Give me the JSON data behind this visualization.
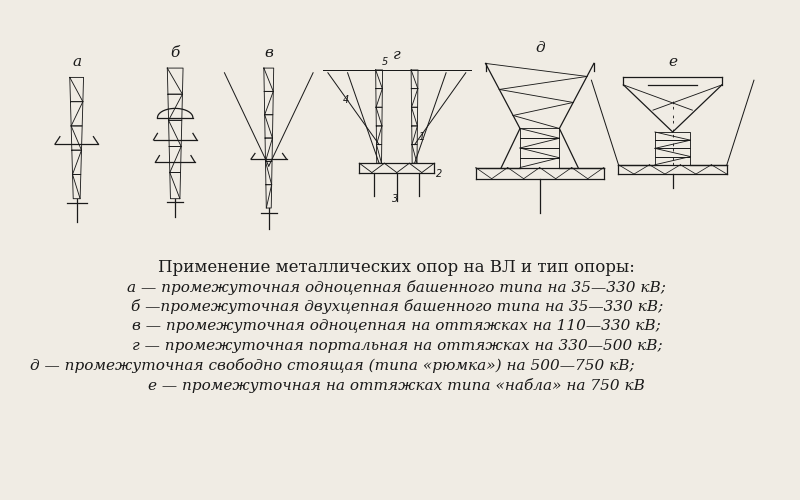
{
  "bg_color": "#f0ece4",
  "line_color": "#1a1a1a",
  "title_text": "Применение металлических опор на ВЛ и тип опоры:",
  "lines": [
    "а — промежуточная одноцепная башенного типа на 35—330 кВ;",
    "б —промежуточная двухцепная башенного типа на 35—330 кВ;",
    "в — промежуточная одноцепная на оттяжках на 110—330 кВ;",
    "г — промежуточная портальная на оттяжках на 330—500 кВ;",
    "д — промежуточная свободно стоящая (типа «рюмка») на 500—750 кВ;",
    "е — промежуточная на оттяжках типа «набла» на 750 кВ"
  ],
  "labels": [
    "а",
    "б",
    "в",
    "г",
    "д",
    "е"
  ],
  "label_italic": [
    true,
    true,
    true,
    true,
    true,
    true
  ],
  "title_fontsize": 12,
  "body_fontsize": 11,
  "label_fontsize": 12
}
